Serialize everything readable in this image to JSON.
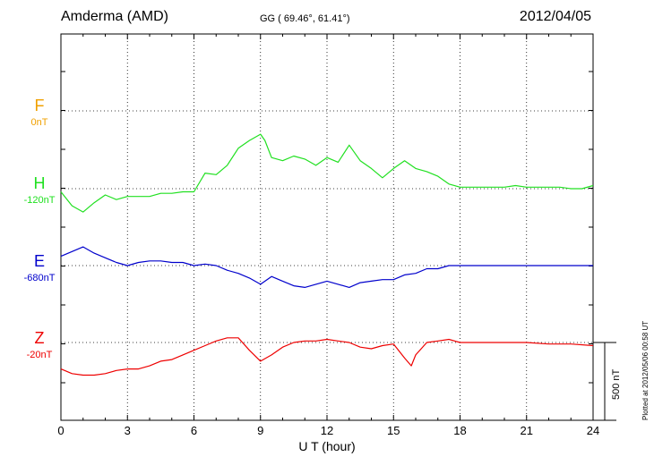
{
  "header": {
    "station": "Amderma (AMD)",
    "coords": "GG ( 69.46°,  61.41°)",
    "date": "2012/04/05"
  },
  "plotted_note": "Plotted at 2012/05/06 00:58 UT",
  "scale_label": "500 nT",
  "components": [
    {
      "name": "F",
      "base": "0nT",
      "color": "#f0a000"
    },
    {
      "name": "H",
      "base": "-120nT",
      "color": "#20e020"
    },
    {
      "name": "E",
      "base": "-680nT",
      "color": "#0000cc"
    },
    {
      "name": "Z",
      "base": "-20nT",
      "color": "#ee0000"
    }
  ],
  "chart_data": {
    "type": "line",
    "xlabel": "U T (hour)",
    "xlim": [
      0,
      24
    ],
    "xticks": [
      "0",
      "3",
      "6",
      "9",
      "12",
      "15",
      "18",
      "21",
      "24"
    ],
    "ylabel": "",
    "scale_nT": 500,
    "grid": "dotted",
    "series": [
      {
        "name": "F",
        "color": "#f0a000",
        "x": [],
        "y": []
      },
      {
        "name": "H",
        "color": "#20e020",
        "x": [
          0,
          0.5,
          1,
          1.5,
          2,
          2.5,
          3,
          3.5,
          4,
          4.5,
          5,
          5.5,
          6,
          6.5,
          7,
          7.5,
          8,
          8.5,
          9,
          9.2,
          9.5,
          10,
          10.5,
          11,
          11.5,
          12,
          12.5,
          13,
          13.5,
          14,
          14.5,
          15,
          15.5,
          16,
          16.5,
          17,
          17.5,
          18,
          18.5,
          19,
          19.5,
          20,
          20.5,
          21,
          21.5,
          22,
          22.5,
          23,
          23.5,
          24
        ],
        "y": [
          -20,
          -110,
          -150,
          -90,
          -40,
          -70,
          -50,
          -50,
          -50,
          -30,
          -30,
          -20,
          -20,
          100,
          90,
          150,
          260,
          310,
          350,
          310,
          200,
          180,
          210,
          190,
          150,
          200,
          170,
          280,
          180,
          130,
          70,
          130,
          180,
          130,
          110,
          80,
          30,
          10,
          10,
          10,
          10,
          10,
          20,
          10,
          10,
          10,
          10,
          0,
          0,
          20
        ]
      },
      {
        "name": "E",
        "color": "#0000cc",
        "x": [
          0,
          0.5,
          1,
          1.5,
          2,
          2.5,
          3,
          3.5,
          4,
          4.5,
          5,
          5.5,
          6,
          6.5,
          7,
          7.5,
          8,
          8.5,
          9,
          9.5,
          10,
          10.5,
          11,
          11.5,
          12,
          12.5,
          13,
          13.5,
          14,
          14.5,
          15,
          15.5,
          16,
          16.5,
          17,
          17.5,
          18,
          19,
          20,
          21,
          22,
          23,
          24
        ],
        "y": [
          60,
          90,
          120,
          80,
          50,
          20,
          0,
          20,
          30,
          30,
          20,
          20,
          0,
          10,
          0,
          -30,
          -50,
          -80,
          -120,
          -70,
          -100,
          -130,
          -140,
          -120,
          -100,
          -120,
          -140,
          -110,
          -100,
          -90,
          -90,
          -60,
          -50,
          -20,
          -20,
          0,
          0,
          0,
          0,
          0,
          0,
          0,
          0
        ]
      },
      {
        "name": "Z",
        "color": "#ee0000",
        "x": [
          0,
          0.5,
          1,
          1.5,
          2,
          2.5,
          3,
          3.5,
          4,
          4.5,
          5,
          5.5,
          6,
          6.5,
          7,
          7.5,
          8,
          8.5,
          9,
          9.5,
          10,
          10.5,
          11,
          11.5,
          12,
          12.5,
          13,
          13.5,
          14,
          14.5,
          15,
          15.5,
          15.8,
          16,
          16.5,
          17,
          17.5,
          18,
          19,
          20,
          21,
          22,
          23,
          24
        ],
        "y": [
          -170,
          -200,
          -210,
          -210,
          -200,
          -180,
          -170,
          -170,
          -150,
          -120,
          -110,
          -80,
          -50,
          -20,
          10,
          30,
          30,
          -50,
          -120,
          -80,
          -30,
          0,
          10,
          10,
          20,
          10,
          0,
          -30,
          -40,
          -20,
          -10,
          -100,
          -150,
          -80,
          0,
          10,
          20,
          0,
          0,
          0,
          0,
          -10,
          -10,
          -20
        ]
      }
    ]
  }
}
